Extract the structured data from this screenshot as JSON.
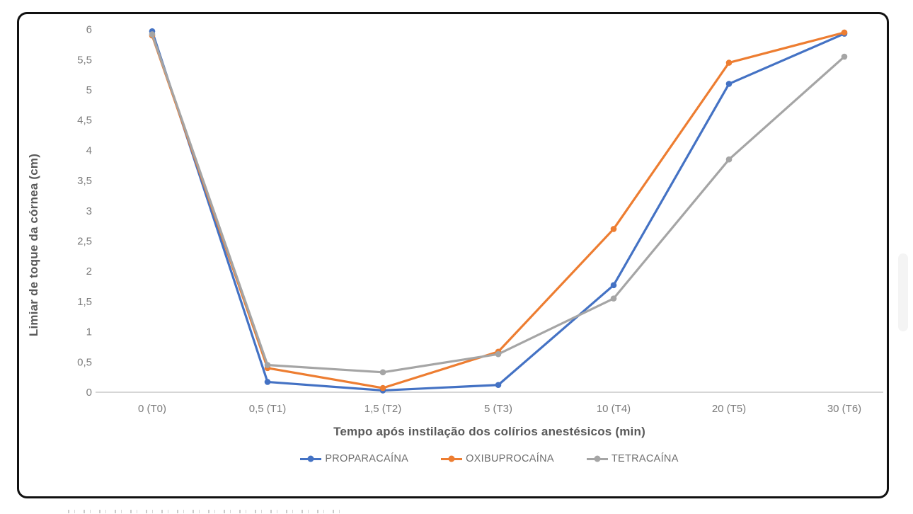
{
  "chart_data": {
    "type": "line",
    "title": "",
    "categories": [
      "0 (T0)",
      "0,5 (T1)",
      "1,5 (T2)",
      "5 (T3)",
      "10 (T4)",
      "20 (T5)",
      "30 (T6)"
    ],
    "series": [
      {
        "name": "PROPARACAÍNA",
        "color": "#4472C4",
        "values": [
          5.97,
          0.17,
          0.03,
          0.12,
          1.77,
          5.1,
          5.93
        ]
      },
      {
        "name": "OXIBUPROCAÍNA",
        "color": "#ED7D31",
        "values": [
          5.9,
          0.4,
          0.07,
          0.67,
          2.7,
          5.45,
          5.95
        ]
      },
      {
        "name": "TETRACAÍNA",
        "color": "#A5A5A5",
        "values": [
          5.92,
          0.45,
          0.33,
          0.63,
          1.55,
          3.85,
          5.55
        ]
      }
    ],
    "xlabel": "Tempo após instilação dos colírios anestésicos (min)",
    "ylabel": "Limiar de toque da córnea (cm)",
    "ylim": [
      0,
      6
    ],
    "y_tick_step": 0.5,
    "y_ticks": [
      "0",
      "0,5",
      "1",
      "1,5",
      "2",
      "2,5",
      "3",
      "3,5",
      "4",
      "4,5",
      "5",
      "5,5",
      "6"
    ],
    "grid": "off",
    "legend_position": "bottom",
    "axis_line_color": "#D6D6D6",
    "tick_label_color": "#7c7c7c",
    "axis_title_color": "#595959"
  }
}
